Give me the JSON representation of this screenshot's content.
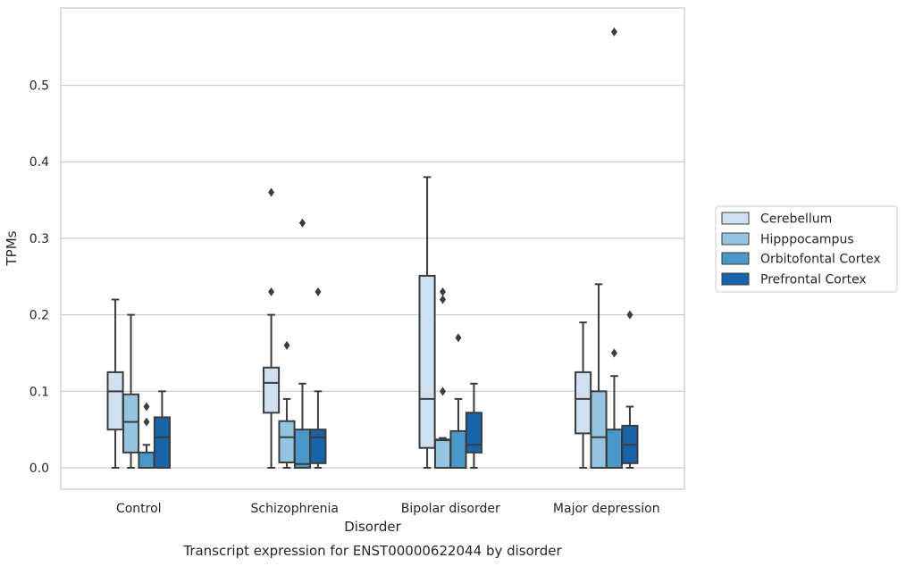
{
  "chart_data": {
    "type": "box",
    "title": "Transcript expression for ENST00000622044 by disorder",
    "xlabel": "Disorder",
    "ylabel": "TPMs",
    "ylim": [
      -0.028,
      0.601
    ],
    "yticks": [
      0.0,
      0.1,
      0.2,
      0.3,
      0.4,
      0.5
    ],
    "ytick_labels": [
      "0.0",
      "0.1",
      "0.2",
      "0.3",
      "0.4",
      "0.5"
    ],
    "grid": "horizontal",
    "legend_position": "right",
    "categories": [
      "Control",
      "Schizophrenia",
      "Bipolar disorder",
      "Major depression"
    ],
    "series": [
      {
        "name": "Cerebellum",
        "color": "#cfe0f1",
        "boxes": [
          {
            "whislo": 0.0,
            "q1": 0.05,
            "med": 0.1,
            "q3": 0.125,
            "whishi": 0.22,
            "fliers": []
          },
          {
            "whislo": 0.0,
            "q1": 0.072,
            "med": 0.111,
            "q3": 0.131,
            "whishi": 0.2,
            "fliers": [
              0.23,
              0.36
            ]
          },
          {
            "whislo": 0.0,
            "q1": 0.026,
            "med": 0.09,
            "q3": 0.251,
            "whishi": 0.38,
            "fliers": []
          },
          {
            "whislo": 0.0,
            "q1": 0.045,
            "med": 0.09,
            "q3": 0.125,
            "whishi": 0.19,
            "fliers": []
          }
        ]
      },
      {
        "name": "Hipppocampus",
        "color": "#94c4df",
        "boxes": [
          {
            "whislo": 0.0,
            "q1": 0.02,
            "med": 0.06,
            "q3": 0.096,
            "whishi": 0.2,
            "fliers": []
          },
          {
            "whislo": 0.0,
            "q1": 0.007,
            "med": 0.04,
            "q3": 0.061,
            "whishi": 0.09,
            "fliers": [
              0.16
            ]
          },
          {
            "whislo": 0.0,
            "q1": 0.0,
            "med": 0.036,
            "q3": 0.037,
            "whishi": 0.039,
            "fliers": [
              0.1,
              0.22,
              0.23
            ]
          },
          {
            "whislo": 0.0,
            "q1": 0.0,
            "med": 0.04,
            "q3": 0.1,
            "whishi": 0.24,
            "fliers": []
          }
        ]
      },
      {
        "name": "Orbitofontal Cortex",
        "color": "#4a98c9",
        "boxes": [
          {
            "whislo": 0.0,
            "q1": 0.0,
            "med": 0.0,
            "q3": 0.02,
            "whishi": 0.03,
            "fliers": [
              0.06,
              0.08
            ]
          },
          {
            "whislo": 0.0,
            "q1": 0.0,
            "med": 0.005,
            "q3": 0.05,
            "whishi": 0.11,
            "fliers": [
              0.32
            ]
          },
          {
            "whislo": 0.0,
            "q1": 0.0,
            "med": 0.0,
            "q3": 0.048,
            "whishi": 0.09,
            "fliers": [
              0.17
            ]
          },
          {
            "whislo": 0.0,
            "q1": 0.0,
            "med": 0.0,
            "q3": 0.05,
            "whishi": 0.12,
            "fliers": [
              0.15,
              0.57
            ]
          }
        ]
      },
      {
        "name": "Prefrontal Cortex",
        "color": "#1764ab",
        "boxes": [
          {
            "whislo": 0.0,
            "q1": 0.0,
            "med": 0.04,
            "q3": 0.066,
            "whishi": 0.1,
            "fliers": []
          },
          {
            "whislo": 0.0,
            "q1": 0.006,
            "med": 0.04,
            "q3": 0.05,
            "whishi": 0.1,
            "fliers": [
              0.23
            ]
          },
          {
            "whislo": 0.0,
            "q1": 0.02,
            "med": 0.03,
            "q3": 0.072,
            "whishi": 0.11,
            "fliers": []
          },
          {
            "whislo": 0.0,
            "q1": 0.006,
            "med": 0.03,
            "q3": 0.055,
            "whishi": 0.08,
            "fliers": [
              0.2
            ]
          }
        ]
      }
    ],
    "colors": {
      "grid": "#cccccc",
      "frame": "#cccccc",
      "box_edge": "#3d3d3d",
      "text": "#262626"
    }
  }
}
